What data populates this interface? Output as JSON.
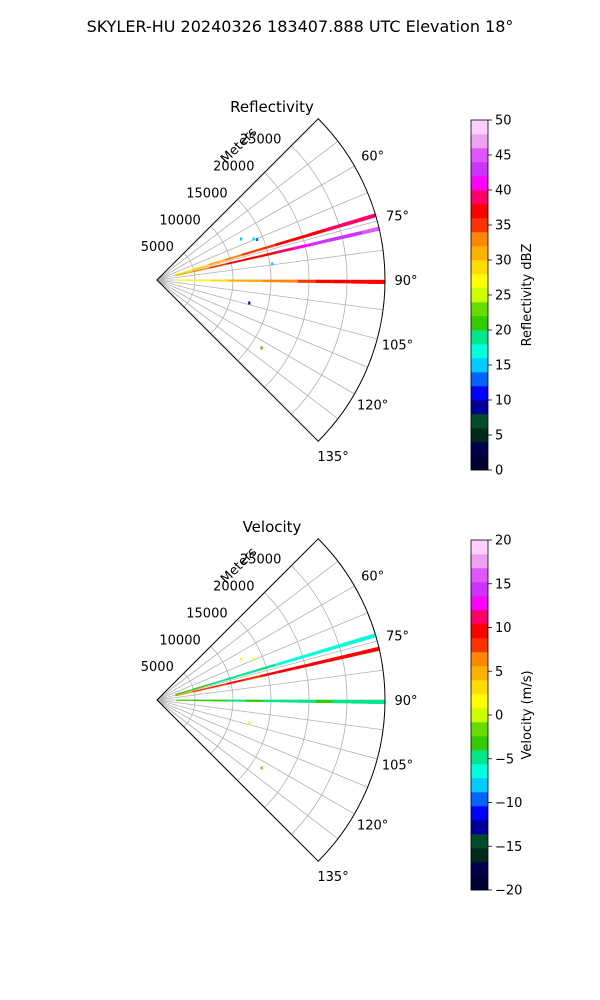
{
  "figure": {
    "title": "SKYLER-HU  20240326  183407.888 UTC Elevation 18°"
  },
  "chart_data": [
    {
      "type": "polar-sector",
      "title": "Reflectivity",
      "radial_label": "Meters",
      "radial_ticks": [
        "5000",
        "10000",
        "15000",
        "20000",
        "25000"
      ],
      "radial_tick_values": [
        5000,
        10000,
        15000,
        20000,
        25000
      ],
      "rmax": 30000,
      "theta_range_deg": [
        45,
        135
      ],
      "theta_ticks": [
        "60°",
        "75°",
        "90°",
        "105°",
        "120°",
        "135°"
      ],
      "theta_tick_values": [
        60,
        75,
        90,
        105,
        120,
        135
      ],
      "colorbar": {
        "label": "Reflectivity dBZ",
        "range": [
          0,
          50
        ],
        "ticks": [
          "0",
          "5",
          "10",
          "15",
          "20",
          "25",
          "30",
          "35",
          "40",
          "45",
          "50"
        ],
        "tick_values": [
          0,
          5,
          10,
          15,
          20,
          25,
          30,
          35,
          40,
          45,
          50
        ],
        "colors": [
          "#000033",
          "#00004d",
          "#002b1a",
          "#004d2b",
          "#000099",
          "#0000ff",
          "#0066ff",
          "#00ccff",
          "#00ffdd",
          "#00e68a",
          "#33cc00",
          "#66dd00",
          "#ccff00",
          "#ffff00",
          "#ffdd00",
          "#ffb000",
          "#ff8800",
          "#ff3300",
          "#ff0000",
          "#ff0066",
          "#ff00ff",
          "#cc33ff",
          "#e055ff",
          "#f0a0f0",
          "#ffd0ff"
        ]
      },
      "rays": [
        {
          "theta": 73.5,
          "r0": 2500,
          "r1": 30000,
          "values": [
            26,
            28,
            30,
            32,
            34,
            35,
            36,
            37,
            37,
            38,
            38,
            38
          ]
        },
        {
          "theta": 77.0,
          "r0": 2500,
          "r1": 30000,
          "values": [
            30,
            33,
            35,
            36,
            36,
            37,
            38,
            40,
            42,
            43,
            43,
            44
          ]
        },
        {
          "theta": 90.5,
          "r0": 2500,
          "r1": 30000,
          "values": [
            26,
            26,
            28,
            30,
            30,
            32,
            33,
            35,
            36,
            36,
            37,
            37
          ]
        }
      ],
      "points": [
        {
          "theta": 64,
          "r": 12300,
          "value": 14
        },
        {
          "theta": 67,
          "r": 13800,
          "value": 14
        },
        {
          "theta": 68,
          "r": 14200,
          "value": 13
        },
        {
          "theta": 82,
          "r": 15300,
          "value": 14
        },
        {
          "theta": 104,
          "r": 12500,
          "value": 11
        },
        {
          "theta": 123,
          "r": 16400,
          "value": 20
        }
      ]
    },
    {
      "type": "polar-sector",
      "title": "Velocity",
      "radial_label": "Meters",
      "radial_ticks": [
        "5000",
        "10000",
        "15000",
        "20000",
        "25000"
      ],
      "radial_tick_values": [
        5000,
        10000,
        15000,
        20000,
        25000
      ],
      "rmax": 30000,
      "theta_range_deg": [
        45,
        135
      ],
      "theta_ticks": [
        "60°",
        "75°",
        "90°",
        "105°",
        "120°",
        "135°"
      ],
      "theta_tick_values": [
        60,
        75,
        90,
        105,
        120,
        135
      ],
      "colorbar": {
        "label": "Velocity (m/s)",
        "range": [
          -20,
          20
        ],
        "ticks": [
          "−20",
          "−15",
          "−10",
          "−5",
          "0",
          "5",
          "10",
          "15",
          "20"
        ],
        "tick_values": [
          -20,
          -15,
          -10,
          -5,
          0,
          5,
          10,
          15,
          20
        ],
        "colors": [
          "#000033",
          "#00004d",
          "#002b1a",
          "#004d2b",
          "#000099",
          "#0000ff",
          "#0066ff",
          "#00ccff",
          "#00ffdd",
          "#00e68a",
          "#33cc00",
          "#66dd00",
          "#ccff00",
          "#ffff00",
          "#ffdd00",
          "#ffb000",
          "#ff8800",
          "#ff3300",
          "#ff0000",
          "#ff0066",
          "#ff00ff",
          "#cc33ff",
          "#e055ff",
          "#f0a0f0",
          "#ffd0ff"
        ]
      },
      "rays": [
        {
          "theta": 73.5,
          "r0": 2500,
          "r1": 30000,
          "values": [
            -4,
            -4,
            -5,
            -5,
            -5,
            -5,
            -6,
            -6,
            -6,
            -6,
            -6,
            -6
          ]
        },
        {
          "theta": 77.0,
          "r0": 2500,
          "r1": 30000,
          "values": [
            6,
            8,
            8,
            9,
            8,
            9,
            10,
            9,
            10,
            10,
            9,
            10
          ]
        },
        {
          "theta": 90.5,
          "r0": 2500,
          "r1": 30000,
          "values": [
            -4,
            -4,
            -4,
            -5,
            -4,
            -5,
            -5,
            -5,
            -4,
            -5,
            -5,
            -5
          ]
        }
      ],
      "points": [
        {
          "theta": 64,
          "r": 12300,
          "value": 1
        },
        {
          "theta": 67,
          "r": 13800,
          "value": 1
        },
        {
          "theta": 104,
          "r": 12500,
          "value": 1
        },
        {
          "theta": 123,
          "r": 16400,
          "value": 6
        }
      ]
    }
  ]
}
